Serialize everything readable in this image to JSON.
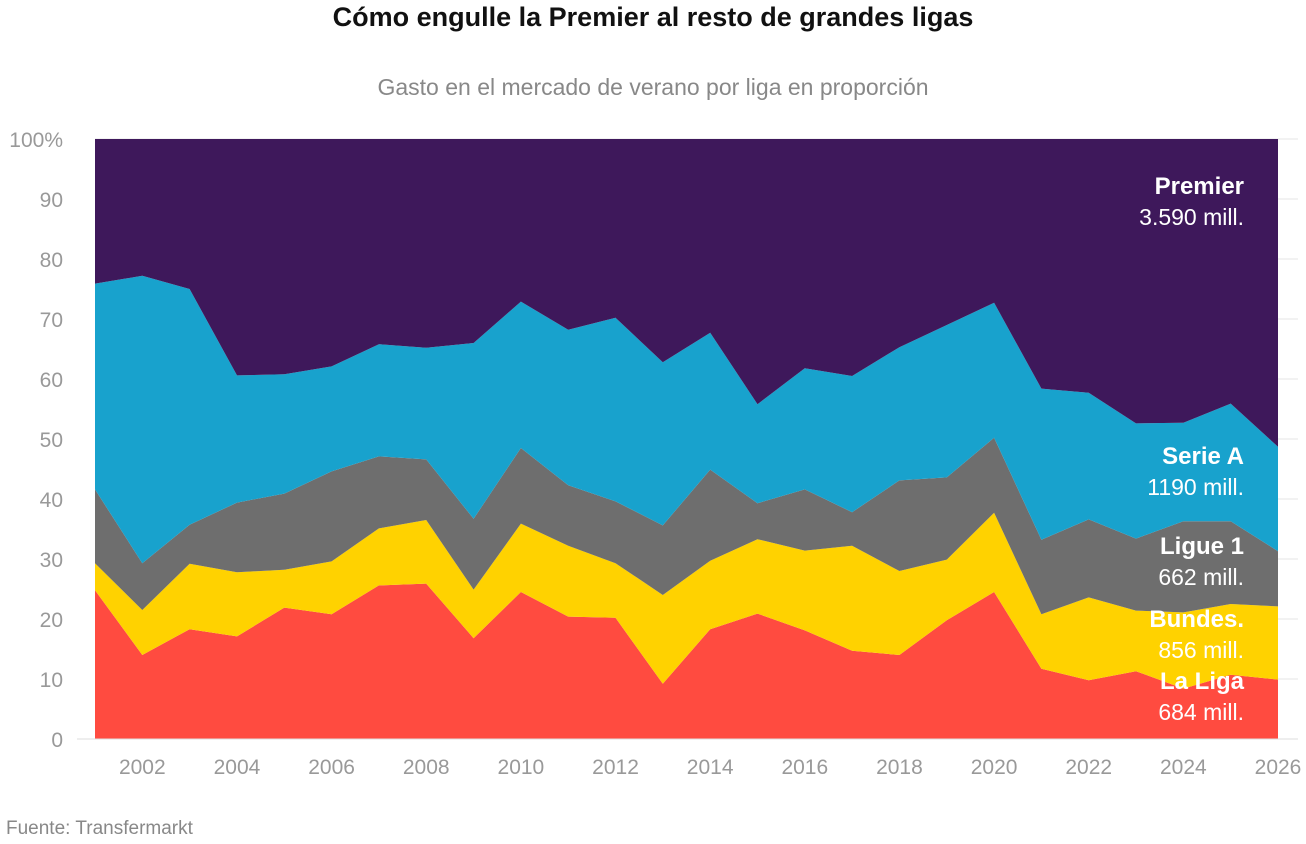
{
  "title": "Cómo engulle la Premier al resto de grandes ligas",
  "subtitle": "Gasto en el mercado de verano por liga en proporción",
  "source": "Fuente: Transfermarkt",
  "chart_data": {
    "type": "area",
    "stacked": true,
    "x": [
      2001,
      2002,
      2003,
      2004,
      2005,
      2006,
      2007,
      2008,
      2009,
      2010,
      2011,
      2012,
      2013,
      2014,
      2015,
      2016,
      2017,
      2018,
      2019,
      2020,
      2021,
      2022,
      2023,
      2024,
      2025,
      2026
    ],
    "xticks": [
      2002,
      2004,
      2006,
      2008,
      2010,
      2012,
      2014,
      2016,
      2018,
      2020,
      2022,
      2024,
      2026
    ],
    "xlim": [
      2001,
      2026
    ],
    "yticks": [
      0,
      10,
      20,
      30,
      40,
      50,
      60,
      70,
      80,
      90,
      100
    ],
    "ytick_labels": [
      "0",
      "10",
      "20",
      "30",
      "40",
      "50",
      "60",
      "70",
      "80",
      "90",
      "100%"
    ],
    "ylim": [
      0,
      100
    ],
    "grid": true,
    "series": [
      {
        "name": "La Liga",
        "total": "684 mill.",
        "color": "#ff4b40",
        "values": [
          24.8,
          14.0,
          18.3,
          17.1,
          21.9,
          20.8,
          25.6,
          25.9,
          16.8,
          24.5,
          20.4,
          20.2,
          9.2,
          18.3,
          20.9,
          18.1,
          14.7,
          14.0,
          19.8,
          24.5,
          11.7,
          9.8,
          11.3,
          8.4,
          10.7,
          9.9
        ]
      },
      {
        "name": "Bundes.",
        "total": "856 mill.",
        "color": "#ffd200",
        "values": [
          4.5,
          7.5,
          10.9,
          10.7,
          6.3,
          8.8,
          9.5,
          10.6,
          8.1,
          11.4,
          11.8,
          9.1,
          14.8,
          11.4,
          12.4,
          13.3,
          17.5,
          14.0,
          10.1,
          13.2,
          9.1,
          13.8,
          10.1,
          12.7,
          11.8,
          12.2
        ]
      },
      {
        "name": "Ligue 1",
        "total": "662 mill.",
        "color": "#6e6e6e",
        "values": [
          12.3,
          7.8,
          6.5,
          11.6,
          12.7,
          15.0,
          12.0,
          10.1,
          11.8,
          12.6,
          10.1,
          10.3,
          11.6,
          15.2,
          6.0,
          10.2,
          5.6,
          15.1,
          13.7,
          12.5,
          12.4,
          13.0,
          12.0,
          15.2,
          13.8,
          9.2
        ]
      },
      {
        "name": "Serie A",
        "total": "1190 mill.",
        "color": "#18a2cd",
        "values": [
          34.3,
          47.9,
          39.3,
          21.2,
          19.9,
          17.5,
          18.7,
          18.6,
          29.3,
          24.4,
          25.9,
          30.6,
          27.2,
          22.8,
          16.5,
          20.2,
          22.7,
          22.2,
          25.4,
          22.5,
          25.2,
          21.1,
          19.2,
          16.4,
          19.6,
          17.4
        ]
      },
      {
        "name": "Premier",
        "total": "3.590 mill.",
        "color": "#3e185b",
        "values": [
          24.1,
          22.8,
          25.0,
          39.4,
          39.2,
          37.9,
          34.2,
          34.8,
          34.0,
          27.1,
          31.8,
          29.8,
          37.2,
          32.3,
          44.2,
          38.2,
          39.5,
          34.7,
          31.0,
          27.3,
          41.6,
          42.3,
          47.4,
          47.3,
          44.1,
          51.3
        ]
      }
    ]
  }
}
